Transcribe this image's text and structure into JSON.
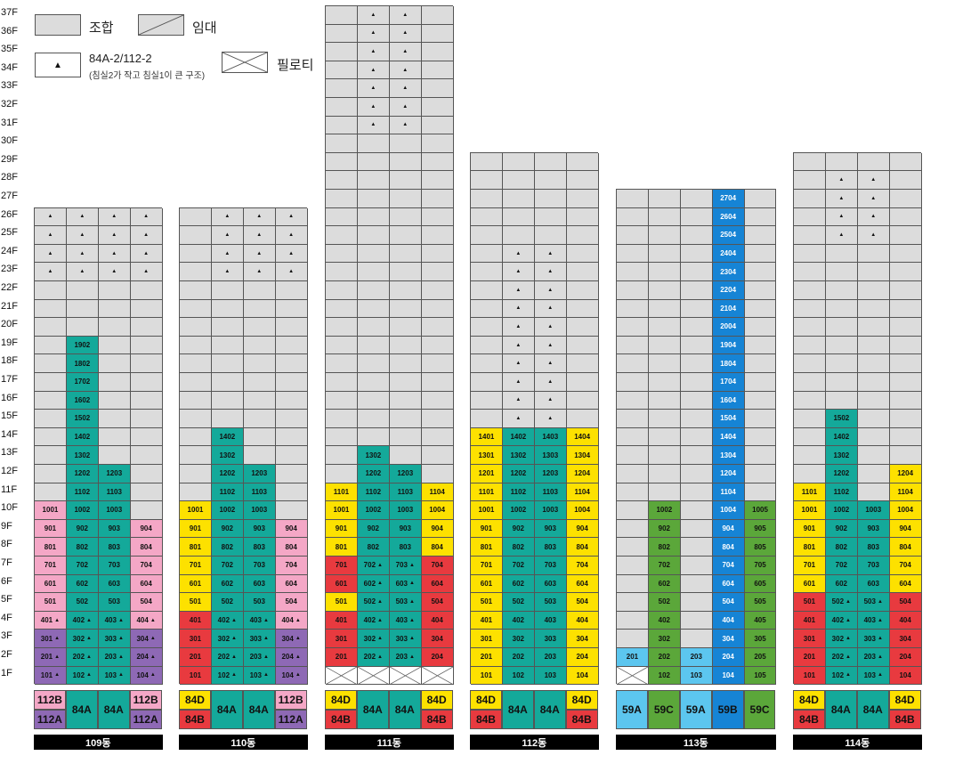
{
  "legend": {
    "union_label": "조합",
    "rental_label": "임대",
    "plan_label": "84A-2/112-2",
    "plan_note": "(침실2가 작고 침실1이 큰 구조)",
    "piloti_label": "필로티"
  },
  "floors": [
    "37F",
    "36F",
    "35F",
    "34F",
    "33F",
    "32F",
    "31F",
    "30F",
    "29F",
    "28F",
    "27F",
    "26F",
    "25F",
    "24F",
    "23F",
    "22F",
    "21F",
    "20F",
    "19F",
    "18F",
    "17F",
    "16F",
    "15F",
    "14F",
    "13F",
    "12F",
    "11F",
    "10F",
    "9F",
    "8F",
    "7F",
    "6F",
    "5F",
    "4F",
    "3F",
    "2F",
    "1F"
  ],
  "colors": {
    "gray": "#dcdcdc",
    "pink": "#f4a7c6",
    "purple": "#8e69b5",
    "teal": "#14a99a",
    "yellow": "#fde100",
    "red": "#e83a3f",
    "green": "#5ba73a",
    "blue": "#1684d5",
    "sky": "#5cc6ef"
  },
  "buildings": [
    {
      "name": "109동",
      "floors": 26,
      "columns": [
        {
          "cells": [
            "101:purple:t",
            "201:purple:t",
            "301:purple:t",
            "401:pink:t",
            "501:pink",
            "601:pink",
            "701:pink",
            "801:pink",
            "901:pink",
            "1001:pink"
          ],
          "tri": [
            23,
            24,
            25,
            26
          ]
        },
        {
          "cells": [
            "102:teal:t",
            "202:teal:t",
            "302:teal:t",
            "402:teal:t",
            "502:teal",
            "602:teal",
            "702:teal",
            "802:teal",
            "902:teal",
            "1002:teal",
            "1102:teal",
            "1202:teal",
            "1302:teal",
            "1402:teal",
            "1502:teal",
            "1602:teal",
            "1702:teal",
            "1802:teal",
            "1902:teal"
          ],
          "tri": [
            23,
            24,
            25,
            26
          ]
        },
        {
          "cells": [
            "103:teal:t",
            "203:teal:t",
            "303:teal:t",
            "403:teal:t",
            "503:teal",
            "603:teal",
            "703:teal",
            "803:teal",
            "903:teal",
            "1003:teal",
            "1103:teal",
            "1203:teal"
          ],
          "tri": [
            23,
            24,
            25,
            26
          ]
        },
        {
          "cells": [
            "104:purple:t",
            "204:purple:t",
            "304:purple:t",
            "404:pink:t",
            "504:pink",
            "604:pink",
            "704:pink",
            "804:pink",
            "904:pink"
          ],
          "tri": [
            23,
            24,
            25,
            26
          ]
        }
      ],
      "types": [
        [
          "112B:pink",
          "112A:purple"
        ],
        [
          "84A:teal"
        ],
        [
          "84A:teal"
        ],
        [
          "112B:pink",
          "112A:purple"
        ]
      ]
    },
    {
      "name": "110동",
      "floors": 26,
      "columns": [
        {
          "cells": [
            "101:red",
            "201:red",
            "301:red",
            "401:red",
            "501:yellow",
            "601:yellow",
            "701:yellow",
            "801:yellow",
            "901:yellow",
            "1001:yellow"
          ],
          "tri": []
        },
        {
          "cells": [
            "102:teal:t",
            "202:teal:t",
            "302:teal:t",
            "402:teal:t",
            "502:teal",
            "602:teal",
            "702:teal",
            "802:teal",
            "902:teal",
            "1002:teal",
            "1102:teal",
            "1202:teal",
            "1302:teal",
            "1402:teal"
          ],
          "tri": [
            23,
            24,
            25,
            26
          ]
        },
        {
          "cells": [
            "103:teal:t",
            "203:teal:t",
            "303:teal:t",
            "403:teal:t",
            "503:teal",
            "603:teal",
            "703:teal",
            "803:teal",
            "903:teal",
            "1003:teal",
            "1103:teal",
            "1203:teal"
          ],
          "tri": [
            23,
            24,
            25,
            26
          ]
        },
        {
          "cells": [
            "104:purple:t",
            "204:purple:t",
            "304:purple:t",
            "404:pink:t",
            "504:pink",
            "604:pink",
            "704:pink",
            "804:pink",
            "904:pink"
          ],
          "tri": [
            23,
            24,
            25,
            26
          ]
        }
      ],
      "types": [
        [
          "84D:yellow",
          "84B:red"
        ],
        [
          "84A:teal"
        ],
        [
          "84A:teal"
        ],
        [
          "112B:pink",
          "112A:purple"
        ]
      ]
    },
    {
      "name": "111동",
      "floors": 37,
      "piloti": [
        0,
        1,
        2,
        3
      ],
      "columns": [
        {
          "cells": [
            "X",
            "201:red",
            "301:red",
            "401:red",
            "501:yellow",
            "601:red",
            "701:red",
            "801:yellow",
            "901:yellow",
            "1001:yellow",
            "1101:yellow"
          ],
          "tri": []
        },
        {
          "cells": [
            "X",
            "202:teal:t",
            "302:teal:t",
            "402:teal:t",
            "502:teal:t",
            "602:teal:t",
            "702:teal:t",
            "802:teal",
            "902:teal",
            "1002:teal",
            "1102:teal",
            "1202:teal",
            "1302:teal"
          ],
          "tri": [
            31,
            32,
            33,
            34,
            35,
            36,
            37
          ]
        },
        {
          "cells": [
            "X",
            "203:teal:t",
            "303:teal:t",
            "403:teal:t",
            "503:teal:t",
            "603:teal:t",
            "703:teal:t",
            "803:teal",
            "903:teal",
            "1003:teal",
            "1103:teal",
            "1203:teal"
          ],
          "tri": [
            31,
            32,
            33,
            34,
            35,
            36,
            37
          ]
        },
        {
          "cells": [
            "X",
            "204:red",
            "304:red",
            "404:red",
            "504:red",
            "604:red",
            "704:red",
            "804:yellow",
            "904:yellow",
            "1004:yellow",
            "1104:yellow"
          ],
          "tri": []
        }
      ],
      "types": [
        [
          "84D:yellow",
          "84B:red"
        ],
        [
          "84A:teal"
        ],
        [
          "84A:teal"
        ],
        [
          "84D:yellow",
          "84B:red"
        ]
      ]
    },
    {
      "name": "112동",
      "floors": 29,
      "columns": [
        {
          "cells": [
            "101:yellow",
            "201:yellow",
            "301:yellow",
            "401:yellow",
            "501:yellow",
            "601:yellow",
            "701:yellow",
            "801:yellow",
            "901:yellow",
            "1001:yellow",
            "1101:yellow",
            "1201:yellow",
            "1301:yellow",
            "1401:yellow"
          ],
          "tri": []
        },
        {
          "cells": [
            "102:teal",
            "202:teal",
            "302:teal",
            "402:teal",
            "502:teal",
            "602:teal",
            "702:teal",
            "802:teal",
            "902:teal",
            "1002:teal",
            "1102:teal",
            "1202:teal",
            "1302:teal",
            "1402:teal"
          ],
          "tri": [
            15,
            16,
            17,
            18,
            19,
            20,
            21,
            22,
            23,
            24
          ]
        },
        {
          "cells": [
            "103:teal",
            "203:teal",
            "303:teal",
            "403:teal",
            "503:teal",
            "603:teal",
            "703:teal",
            "803:teal",
            "903:teal",
            "1003:teal",
            "1103:teal",
            "1203:teal",
            "1303:teal",
            "1403:teal"
          ],
          "tri": [
            15,
            16,
            17,
            18,
            19,
            20,
            21,
            22,
            23,
            24
          ]
        },
        {
          "cells": [
            "104:yellow",
            "204:yellow",
            "304:yellow",
            "404:yellow",
            "504:yellow",
            "604:yellow",
            "704:yellow",
            "804:yellow",
            "904:yellow",
            "1004:yellow",
            "1104:yellow",
            "1204:yellow",
            "1304:yellow",
            "1404:yellow"
          ],
          "tri": []
        }
      ],
      "types": [
        [
          "84D:yellow",
          "84B:red"
        ],
        [
          "84A:teal"
        ],
        [
          "84A:teal"
        ],
        [
          "84D:yellow",
          "84B:red"
        ]
      ]
    },
    {
      "name": "113동",
      "floors": 27,
      "piloti": [
        0
      ],
      "columns": [
        {
          "cells": [
            "X",
            "201:sky"
          ],
          "tri": []
        },
        {
          "cells": [
            "102:green",
            "202:green",
            "302:green",
            "402:green",
            "502:green",
            "602:green",
            "702:green",
            "802:green",
            "902:green",
            "1002:green"
          ],
          "tri": []
        },
        {
          "cells": [
            "103:sky",
            "203:sky"
          ],
          "tri": []
        },
        {
          "cells": [
            "104:blue",
            "204:blue",
            "304:blue",
            "404:blue",
            "504:blue",
            "604:blue",
            "704:blue",
            "804:blue",
            "904:blue",
            "1004:blue",
            "1104:blue",
            "1204:blue",
            "1304:blue",
            "1404:blue",
            "1504:blue",
            "1604:blue",
            "1704:blue",
            "1804:blue",
            "1904:blue",
            "2004:blue",
            "2104:blue",
            "2204:blue",
            "2304:blue",
            "2404:blue",
            "2504:blue",
            "2604:blue",
            "2704:blue"
          ],
          "tri": []
        },
        {
          "cells": [
            "105:green",
            "205:green",
            "305:green",
            "405:green",
            "505:green",
            "605:green",
            "705:green",
            "805:green",
            "905:green",
            "1005:green"
          ],
          "tri": []
        }
      ],
      "types": [
        [
          "59A:sky"
        ],
        [
          "59C:green"
        ],
        [
          "59A:sky"
        ],
        [
          "59B:blue"
        ],
        [
          "59C:green"
        ]
      ]
    },
    {
      "name": "114동",
      "floors": 29,
      "columns": [
        {
          "cells": [
            "101:red",
            "201:red",
            "301:red",
            "401:red",
            "501:red",
            "601:yellow",
            "701:yellow",
            "801:yellow",
            "901:yellow",
            "1001:yellow",
            "1101:yellow"
          ],
          "tri": []
        },
        {
          "cells": [
            "102:teal:t",
            "202:teal:t",
            "302:teal:t",
            "402:teal:t",
            "502:teal:t",
            "602:teal",
            "702:teal",
            "802:teal",
            "902:teal",
            "1002:teal",
            "1102:teal",
            "1202:teal",
            "1302:teal",
            "1402:teal",
            "1502:teal"
          ],
          "tri": [
            25,
            26,
            27,
            28
          ]
        },
        {
          "cells": [
            "103:teal:t",
            "203:teal:t",
            "303:teal:t",
            "403:teal:t",
            "503:teal:t",
            "603:teal",
            "703:teal",
            "803:teal",
            "903:teal",
            "1003:teal"
          ],
          "tri": [
            25,
            26,
            27,
            28
          ]
        },
        {
          "cells": [
            "104:red",
            "204:red",
            "304:red",
            "404:red",
            "504:red",
            "604:yellow",
            "704:yellow",
            "804:yellow",
            "904:yellow",
            "1004:yellow",
            "1104:yellow",
            "1204:yellow"
          ],
          "tri": []
        }
      ],
      "types": [
        [
          "84D:yellow",
          "84B:red"
        ],
        [
          "84A:teal"
        ],
        [
          "84A:teal"
        ],
        [
          "84D:yellow",
          "84B:red"
        ]
      ]
    }
  ]
}
